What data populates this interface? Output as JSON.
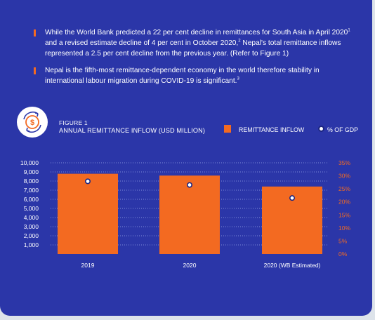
{
  "intro": {
    "paragraphs": [
      {
        "text_a": "While the World Bank predicted a 22 per cent decline in remittances for South Asia in April 2020",
        "sup_a": "1",
        "text_b": " and a revised estimate decline of 4 per cent in October 2020,",
        "sup_b": "2",
        "text_c": " Nepal's total remittance inflows represented a 2.5 per cent decline from the previous year. (Refer to Figure 1)"
      },
      {
        "text_a": "Nepal is the fifth-most remittance-dependent economy in the world therefore stability in international labour migration during COVID-19 is significant.",
        "sup_a": "3"
      }
    ]
  },
  "figure": {
    "label": "FIGURE 1",
    "title": "ANNUAL REMITTANCE INFLOW (USD MILLION)",
    "icon": "currency-cycle-icon"
  },
  "legend": {
    "bar_label": "REMITTANCE INFLOW",
    "dot_label": "% OF GDP"
  },
  "colors": {
    "background": "#2b36a8",
    "bar": "#f36a21",
    "dot": "#ffffff",
    "right_axis": "#f36a21"
  },
  "chart_data": {
    "type": "bar",
    "categories": [
      "2019",
      "2020",
      "2020 (WB Estimated)"
    ],
    "series": [
      {
        "name": "REMITTANCE INFLOW",
        "type": "bar",
        "axis": "left",
        "values": [
          8800,
          8600,
          7400
        ]
      },
      {
        "name": "% OF GDP",
        "type": "scatter",
        "axis": "right",
        "values": [
          27.9,
          26.5,
          21.5
        ]
      }
    ],
    "y_left": {
      "ticks": [
        "1,000",
        "2,000",
        "3,000",
        "4,000",
        "5,000",
        "6,000",
        "7,000",
        "8,000",
        "9,000",
        "10,000"
      ],
      "lim": [
        0,
        10000
      ]
    },
    "y_right": {
      "ticks": [
        "0%",
        "5%",
        "10%",
        "15%",
        "20%",
        "25%",
        "30%",
        "35%"
      ],
      "lim": [
        0,
        35
      ]
    },
    "grid": "dotted horizontal"
  }
}
